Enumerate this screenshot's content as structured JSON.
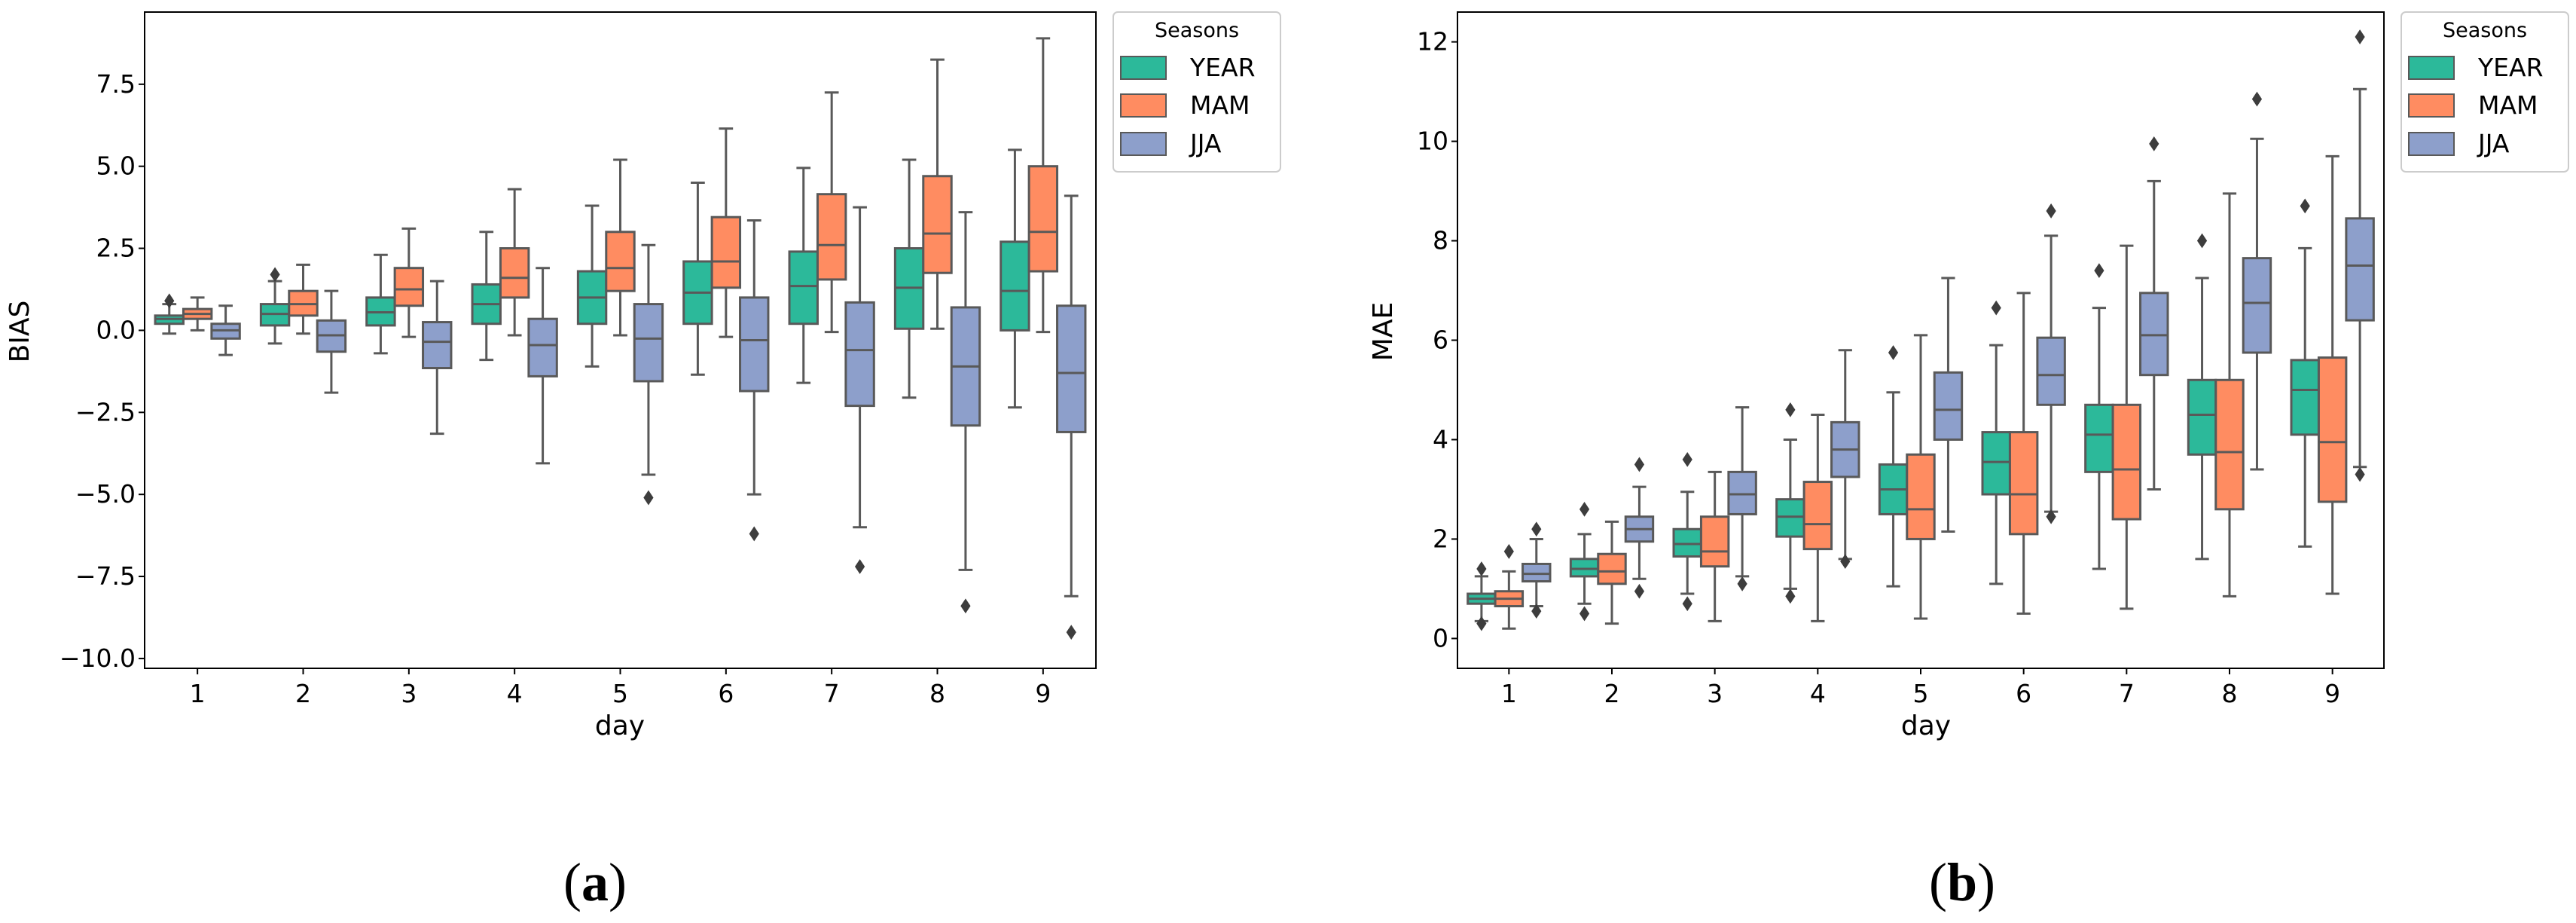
{
  "chart_data": [
    {
      "type": "boxplot",
      "caption_letter": "a",
      "xlabel": "day",
      "ylabel": "BIAS",
      "categories": [
        "1",
        "2",
        "3",
        "4",
        "5",
        "6",
        "7",
        "8",
        "9"
      ],
      "ylim": [
        -10.3,
        9.7
      ],
      "yticks": [
        -10.0,
        -7.5,
        -5.0,
        -2.5,
        0.0,
        2.5,
        5.0,
        7.5
      ],
      "ytick_labels": [
        "−10.0",
        "−7.5",
        "−5.0",
        "−2.5",
        "0.0",
        "2.5",
        "5.0",
        "7.5"
      ],
      "legend": {
        "title": "Seasons",
        "position": "outside-top-right"
      },
      "series": [
        {
          "name": "YEAR",
          "color": "#2CB99A",
          "boxes": [
            {
              "lo": -0.1,
              "q1": 0.2,
              "med": 0.35,
              "q3": 0.45,
              "hi": 0.8,
              "fliers": [
                0.9
              ]
            },
            {
              "lo": -0.4,
              "q1": 0.15,
              "med": 0.5,
              "q3": 0.8,
              "hi": 1.5,
              "fliers": [
                1.7
              ]
            },
            {
              "lo": -0.7,
              "q1": 0.15,
              "med": 0.55,
              "q3": 1.0,
              "hi": 2.3,
              "fliers": []
            },
            {
              "lo": -0.9,
              "q1": 0.2,
              "med": 0.8,
              "q3": 1.4,
              "hi": 3.0,
              "fliers": []
            },
            {
              "lo": -1.1,
              "q1": 0.2,
              "med": 1.0,
              "q3": 1.8,
              "hi": 3.8,
              "fliers": []
            },
            {
              "lo": -1.35,
              "q1": 0.2,
              "med": 1.15,
              "q3": 2.1,
              "hi": 4.5,
              "fliers": []
            },
            {
              "lo": -1.6,
              "q1": 0.2,
              "med": 1.35,
              "q3": 2.4,
              "hi": 4.95,
              "fliers": []
            },
            {
              "lo": -2.05,
              "q1": 0.05,
              "med": 1.3,
              "q3": 2.5,
              "hi": 5.2,
              "fliers": []
            },
            {
              "lo": -2.35,
              "q1": 0.0,
              "med": 1.2,
              "q3": 2.7,
              "hi": 5.5,
              "fliers": []
            }
          ]
        },
        {
          "name": "MAM",
          "color": "#FF8C61",
          "boxes": [
            {
              "lo": 0.0,
              "q1": 0.35,
              "med": 0.5,
              "q3": 0.65,
              "hi": 1.0,
              "fliers": []
            },
            {
              "lo": -0.1,
              "q1": 0.45,
              "med": 0.8,
              "q3": 1.2,
              "hi": 2.0,
              "fliers": []
            },
            {
              "lo": -0.2,
              "q1": 0.75,
              "med": 1.25,
              "q3": 1.9,
              "hi": 3.1,
              "fliers": []
            },
            {
              "lo": -0.15,
              "q1": 1.0,
              "med": 1.6,
              "q3": 2.5,
              "hi": 4.3,
              "fliers": []
            },
            {
              "lo": -0.15,
              "q1": 1.2,
              "med": 1.9,
              "q3": 3.0,
              "hi": 5.2,
              "fliers": []
            },
            {
              "lo": -0.2,
              "q1": 1.3,
              "med": 2.1,
              "q3": 3.45,
              "hi": 6.15,
              "fliers": []
            },
            {
              "lo": -0.05,
              "q1": 1.55,
              "med": 2.6,
              "q3": 4.15,
              "hi": 7.25,
              "fliers": []
            },
            {
              "lo": 0.05,
              "q1": 1.75,
              "med": 2.95,
              "q3": 4.7,
              "hi": 8.25,
              "fliers": []
            },
            {
              "lo": -0.05,
              "q1": 1.8,
              "med": 3.0,
              "q3": 5.0,
              "hi": 8.9,
              "fliers": []
            }
          ]
        },
        {
          "name": "JJA",
          "color": "#8D9FCB",
          "boxes": [
            {
              "lo": -0.75,
              "q1": -0.25,
              "med": 0.0,
              "q3": 0.2,
              "hi": 0.75,
              "fliers": []
            },
            {
              "lo": -1.9,
              "q1": -0.65,
              "med": -0.15,
              "q3": 0.3,
              "hi": 1.2,
              "fliers": []
            },
            {
              "lo": -3.15,
              "q1": -1.15,
              "med": -0.35,
              "q3": 0.25,
              "hi": 1.5,
              "fliers": []
            },
            {
              "lo": -4.05,
              "q1": -1.4,
              "med": -0.45,
              "q3": 0.35,
              "hi": 1.9,
              "fliers": []
            },
            {
              "lo": -4.4,
              "q1": -1.55,
              "med": -0.25,
              "q3": 0.8,
              "hi": 2.6,
              "fliers": [
                -5.1
              ]
            },
            {
              "lo": -5.0,
              "q1": -1.85,
              "med": -0.3,
              "q3": 1.0,
              "hi": 3.35,
              "fliers": [
                -6.2
              ]
            },
            {
              "lo": -6.0,
              "q1": -2.3,
              "med": -0.6,
              "q3": 0.85,
              "hi": 3.75,
              "fliers": [
                -7.2
              ]
            },
            {
              "lo": -7.3,
              "q1": -2.9,
              "med": -1.1,
              "q3": 0.7,
              "hi": 3.6,
              "fliers": [
                -8.4
              ]
            },
            {
              "lo": -8.1,
              "q1": -3.1,
              "med": -1.3,
              "q3": 0.75,
              "hi": 4.1,
              "fliers": [
                -9.2
              ]
            }
          ]
        }
      ]
    },
    {
      "type": "boxplot",
      "caption_letter": "b",
      "xlabel": "day",
      "ylabel": "MAE",
      "categories": [
        "1",
        "2",
        "3",
        "4",
        "5",
        "6",
        "7",
        "8",
        "9"
      ],
      "ylim": [
        -0.6,
        12.6
      ],
      "yticks": [
        0,
        2,
        4,
        6,
        8,
        10,
        12
      ],
      "ytick_labels": [
        "0",
        "2",
        "4",
        "6",
        "8",
        "10",
        "12"
      ],
      "legend": {
        "title": "Seasons",
        "position": "outside-top-right"
      },
      "series": [
        {
          "name": "YEAR",
          "color": "#2CB99A",
          "boxes": [
            {
              "lo": 0.35,
              "q1": 0.7,
              "med": 0.8,
              "q3": 0.9,
              "hi": 1.25,
              "fliers": [
                0.3,
                1.4
              ]
            },
            {
              "lo": 0.7,
              "q1": 1.25,
              "med": 1.4,
              "q3": 1.6,
              "hi": 2.1,
              "fliers": [
                0.5,
                2.6
              ]
            },
            {
              "lo": 0.9,
              "q1": 1.65,
              "med": 1.9,
              "q3": 2.2,
              "hi": 2.95,
              "fliers": [
                0.7,
                3.6
              ]
            },
            {
              "lo": 1.0,
              "q1": 2.05,
              "med": 2.45,
              "q3": 2.8,
              "hi": 4.0,
              "fliers": [
                0.85,
                4.6
              ]
            },
            {
              "lo": 1.05,
              "q1": 2.5,
              "med": 3.0,
              "q3": 3.5,
              "hi": 4.95,
              "fliers": [
                5.75
              ]
            },
            {
              "lo": 1.1,
              "q1": 2.9,
              "med": 3.55,
              "q3": 4.15,
              "hi": 5.9,
              "fliers": [
                6.65
              ]
            },
            {
              "lo": 1.4,
              "q1": 3.35,
              "med": 4.1,
              "q3": 4.7,
              "hi": 6.65,
              "fliers": [
                7.4
              ]
            },
            {
              "lo": 1.6,
              "q1": 3.7,
              "med": 4.5,
              "q3": 5.2,
              "hi": 7.25,
              "fliers": [
                8.0
              ]
            },
            {
              "lo": 1.85,
              "q1": 4.1,
              "med": 5.0,
              "q3": 5.6,
              "hi": 7.85,
              "fliers": [
                8.7
              ]
            }
          ]
        },
        {
          "name": "MAM",
          "color": "#FF8C61",
          "boxes": [
            {
              "lo": 0.2,
              "q1": 0.65,
              "med": 0.8,
              "q3": 0.95,
              "hi": 1.35,
              "fliers": [
                1.75
              ]
            },
            {
              "lo": 0.3,
              "q1": 1.1,
              "med": 1.35,
              "q3": 1.7,
              "hi": 2.35,
              "fliers": []
            },
            {
              "lo": 0.35,
              "q1": 1.45,
              "med": 1.75,
              "q3": 2.45,
              "hi": 3.35,
              "fliers": []
            },
            {
              "lo": 0.35,
              "q1": 1.8,
              "med": 2.3,
              "q3": 3.15,
              "hi": 4.5,
              "fliers": []
            },
            {
              "lo": 0.4,
              "q1": 2.0,
              "med": 2.6,
              "q3": 3.7,
              "hi": 6.1,
              "fliers": []
            },
            {
              "lo": 0.5,
              "q1": 2.1,
              "med": 2.9,
              "q3": 4.15,
              "hi": 6.95,
              "fliers": []
            },
            {
              "lo": 0.6,
              "q1": 2.4,
              "med": 3.4,
              "q3": 4.7,
              "hi": 7.9,
              "fliers": []
            },
            {
              "lo": 0.85,
              "q1": 2.6,
              "med": 3.75,
              "q3": 5.2,
              "hi": 8.95,
              "fliers": []
            },
            {
              "lo": 0.9,
              "q1": 2.75,
              "med": 3.95,
              "q3": 5.65,
              "hi": 9.7,
              "fliers": []
            }
          ]
        },
        {
          "name": "JJA",
          "color": "#8D9FCB",
          "boxes": [
            {
              "lo": 0.65,
              "q1": 1.15,
              "med": 1.3,
              "q3": 1.5,
              "hi": 2.0,
              "fliers": [
                0.55,
                2.2
              ]
            },
            {
              "lo": 1.2,
              "q1": 1.95,
              "med": 2.2,
              "q3": 2.45,
              "hi": 3.05,
              "fliers": [
                0.95,
                3.5
              ]
            },
            {
              "lo": 1.25,
              "q1": 2.5,
              "med": 2.9,
              "q3": 3.35,
              "hi": 4.65,
              "fliers": [
                1.1
              ]
            },
            {
              "lo": 1.6,
              "q1": 3.25,
              "med": 3.8,
              "q3": 4.35,
              "hi": 5.8,
              "fliers": [
                1.55
              ]
            },
            {
              "lo": 2.15,
              "q1": 4.0,
              "med": 4.6,
              "q3": 5.35,
              "hi": 7.25,
              "fliers": []
            },
            {
              "lo": 2.55,
              "q1": 4.7,
              "med": 5.3,
              "q3": 6.05,
              "hi": 8.1,
              "fliers": [
                2.45,
                8.6
              ]
            },
            {
              "lo": 3.0,
              "q1": 5.3,
              "med": 6.1,
              "q3": 6.95,
              "hi": 9.2,
              "fliers": [
                9.95
              ]
            },
            {
              "lo": 3.4,
              "q1": 5.75,
              "med": 6.75,
              "q3": 7.65,
              "hi": 10.05,
              "fliers": [
                10.85
              ]
            },
            {
              "lo": 3.45,
              "q1": 6.4,
              "med": 7.5,
              "q3": 8.45,
              "hi": 11.05,
              "fliers": [
                3.3,
                12.1
              ]
            }
          ]
        }
      ]
    }
  ]
}
